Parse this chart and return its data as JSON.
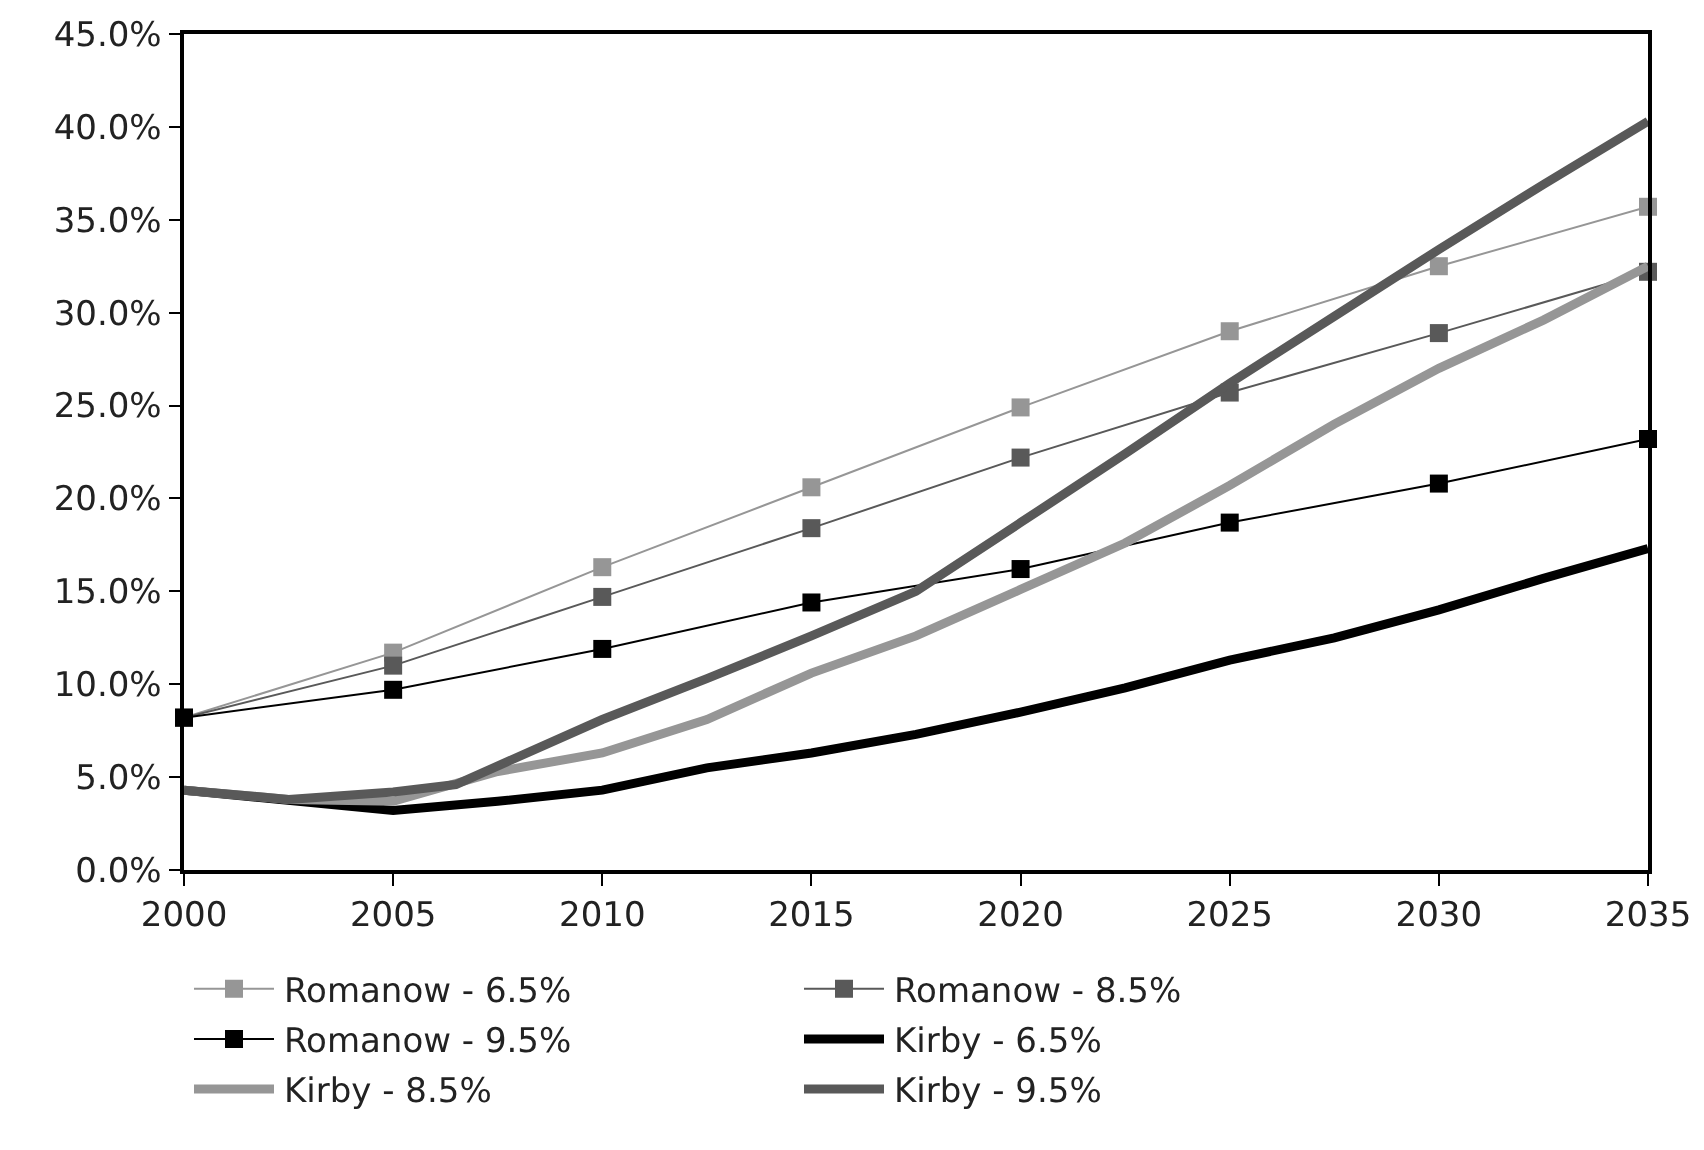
{
  "chart_data": {
    "type": "line",
    "xlim": [
      2000,
      2035
    ],
    "xticks": [
      2000,
      2005,
      2010,
      2015,
      2020,
      2025,
      2030,
      2035
    ],
    "ylim": [
      0,
      45
    ],
    "yticks": [
      {
        "value": 0,
        "label": "0.0%"
      },
      {
        "value": 5,
        "label": "5.0%"
      },
      {
        "value": 10,
        "label": "10.0%"
      },
      {
        "value": 15,
        "label": "15.0%"
      },
      {
        "value": 20,
        "label": "20.0%"
      },
      {
        "value": 25,
        "label": "25.0%"
      },
      {
        "value": 30,
        "label": "30.0%"
      },
      {
        "value": 35,
        "label": "35.0%"
      },
      {
        "value": 40,
        "label": "40.0%"
      },
      {
        "value": 45,
        "label": "45.0%"
      }
    ],
    "grid": false,
    "legend": "bottom",
    "series": [
      {
        "name": "Romanow - 6.5%",
        "color": "#969696",
        "marker": "square",
        "x": [
          2000,
          2005,
          2010,
          2015,
          2020,
          2025,
          2030,
          2035
        ],
        "values": [
          8.2,
          11.7,
          16.3,
          20.6,
          24.9,
          29.0,
          32.5,
          35.7
        ]
      },
      {
        "name": "Romanow - 8.5%",
        "color": "#595959",
        "marker": "square",
        "x": [
          2000,
          2005,
          2010,
          2015,
          2020,
          2025,
          2030,
          2035
        ],
        "values": [
          8.2,
          11.0,
          14.7,
          18.4,
          22.2,
          25.7,
          28.9,
          32.2
        ]
      },
      {
        "name": "Romanow - 9.5%",
        "color": "#000000",
        "marker": "square",
        "x": [
          2000,
          2005,
          2010,
          2015,
          2020,
          2025,
          2030,
          2035
        ],
        "values": [
          8.2,
          9.7,
          11.9,
          14.4,
          16.2,
          18.7,
          20.8,
          23.2
        ]
      },
      {
        "name": "Kirby - 6.5%",
        "color": "#000000",
        "marker": "none",
        "x": [
          2000,
          2005,
          2007.5,
          2010,
          2012.5,
          2015,
          2017.5,
          2020,
          2022.5,
          2025,
          2027.5,
          2030,
          2032.5,
          2035
        ],
        "values": [
          4.3,
          3.2,
          3.7,
          4.3,
          5.5,
          6.3,
          7.3,
          8.5,
          9.8,
          11.3,
          12.5,
          14.0,
          15.7,
          17.3
        ]
      },
      {
        "name": "Kirby - 8.5%",
        "color": "#969696",
        "marker": "none",
        "x": [
          2000,
          2002.5,
          2005,
          2007.5,
          2010,
          2012.5,
          2015,
          2017.5,
          2020,
          2022.5,
          2025,
          2027.5,
          2030,
          2032.5,
          2035
        ],
        "values": [
          4.3,
          3.8,
          3.7,
          5.3,
          6.3,
          8.1,
          10.6,
          12.6,
          15.1,
          17.6,
          20.7,
          24.0,
          27.0,
          29.6,
          32.5
        ]
      },
      {
        "name": "Kirby - 9.5%",
        "color": "#595959",
        "marker": "none",
        "x": [
          2000,
          2002.5,
          2005,
          2006.5,
          2010,
          2012.5,
          2015,
          2017.5,
          2020,
          2022.5,
          2025,
          2027.5,
          2030,
          2032.5,
          2035
        ],
        "values": [
          4.3,
          3.8,
          4.2,
          4.6,
          8.1,
          10.3,
          12.6,
          15.0,
          18.7,
          22.4,
          26.2,
          29.8,
          33.4,
          36.9,
          40.3
        ]
      }
    ]
  }
}
